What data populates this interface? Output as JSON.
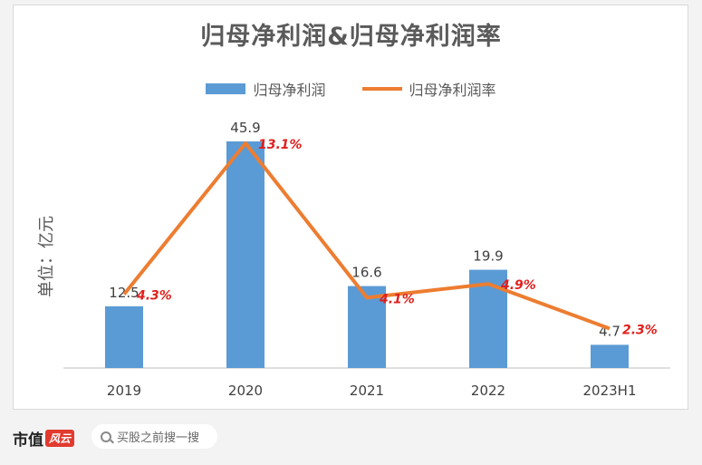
{
  "chart_data": {
    "type": "bar",
    "title": "归母净利润&归母净利润率",
    "ylabel": "单位：亿元",
    "categories": [
      "2019",
      "2020",
      "2021",
      "2022",
      "2023H1"
    ],
    "ylim": [
      0,
      50
    ],
    "series": [
      {
        "name": "归母净利润",
        "type": "bar",
        "color": "#5b9bd5",
        "values": [
          12.5,
          45.9,
          16.6,
          19.9,
          4.7
        ],
        "labels": [
          "12.5",
          "45.9",
          "16.6",
          "19.9",
          "4.7"
        ]
      },
      {
        "name": "归母净利润率",
        "type": "line",
        "color": "#ed7d31",
        "values": [
          4.3,
          13.1,
          4.1,
          4.9,
          2.3
        ],
        "labels": [
          "4.3%",
          "13.1%",
          "4.1%",
          "4.9%",
          "2.3%"
        ],
        "label_color": "#e0201d",
        "ylim": [
          0,
          15
        ]
      }
    ],
    "legend": "top-center",
    "grid": false
  },
  "footer": {
    "brand_text": "市值",
    "brand_tag": "风云",
    "search_placeholder": "买股之前搜一搜",
    "search_icon": "search-icon"
  }
}
